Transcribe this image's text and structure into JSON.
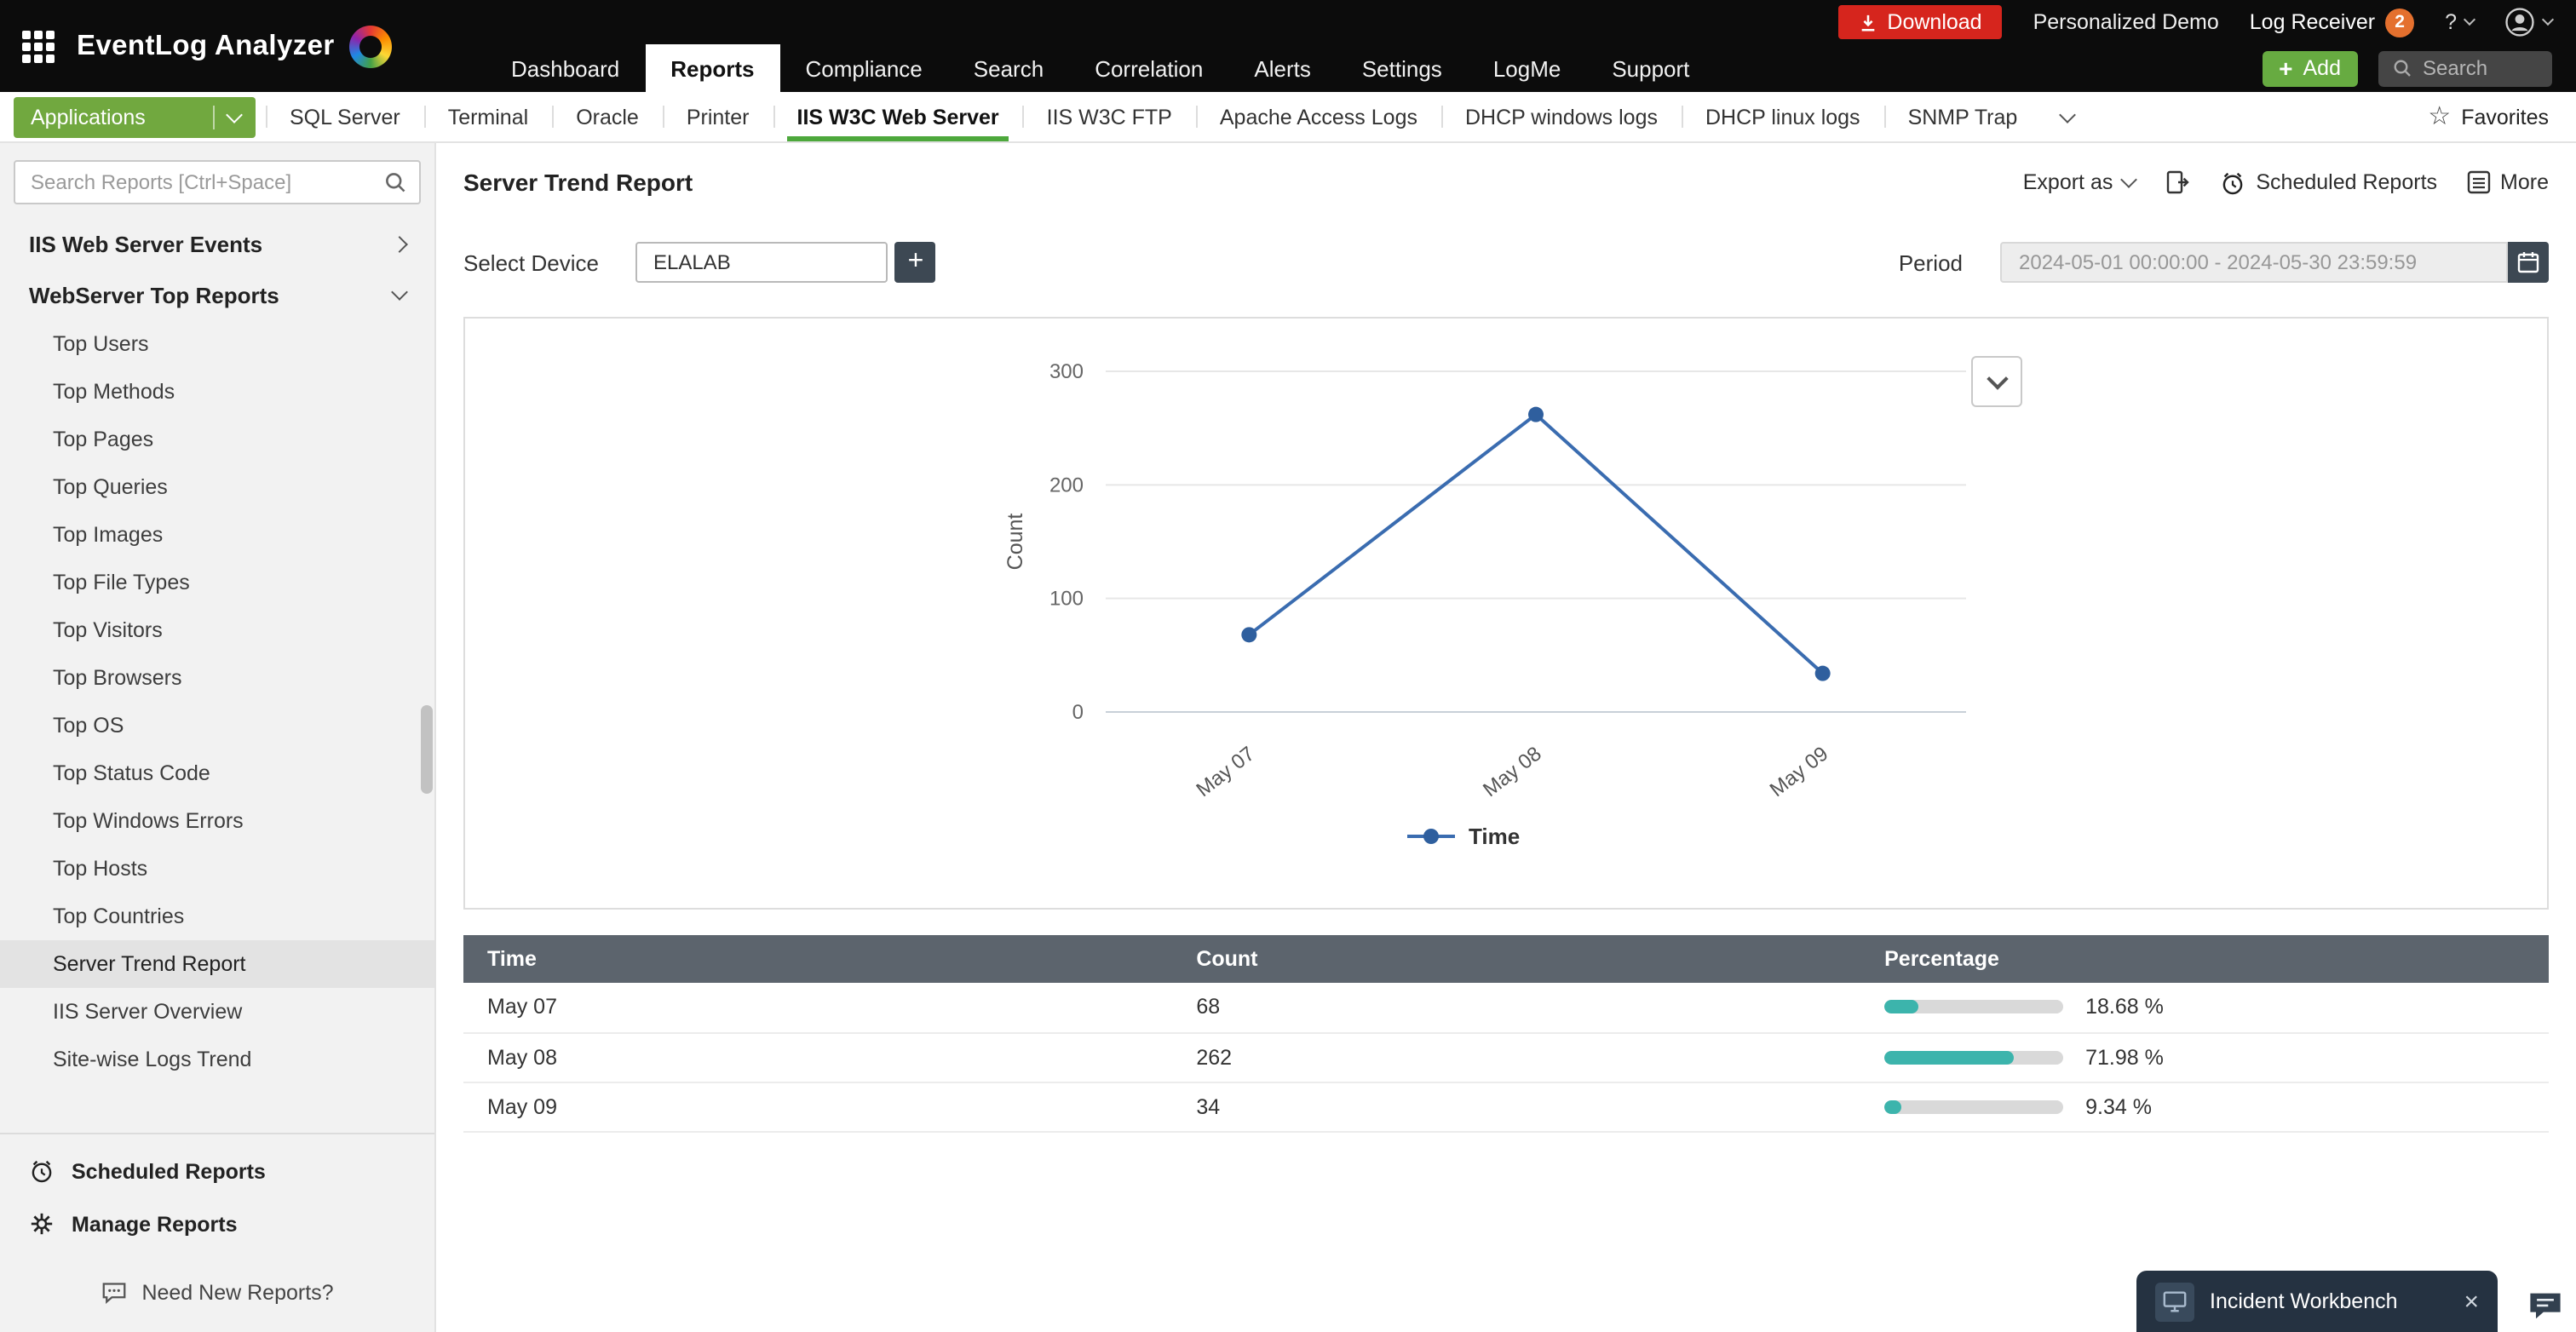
{
  "topbar": {
    "app_title": "EventLog Analyzer",
    "nav": [
      "Dashboard",
      "Reports",
      "Compliance",
      "Search",
      "Correlation",
      "Alerts",
      "Settings",
      "LogMe",
      "Support"
    ],
    "active_nav": "Reports",
    "download_label": "Download",
    "personalized_demo_label": "Personalized Demo",
    "log_receiver_label": "Log Receiver",
    "log_receiver_badge": "2",
    "help_label": "?",
    "add_label": "Add",
    "search_placeholder": "Search"
  },
  "tabbar": {
    "applications_label": "Applications",
    "tabs": [
      "SQL Server",
      "Terminal",
      "Oracle",
      "Printer",
      "IIS W3C Web Server",
      "IIS W3C FTP",
      "Apache Access Logs",
      "DHCP windows logs",
      "DHCP linux logs",
      "SNMP Trap"
    ],
    "active_tab": "IIS W3C Web Server",
    "favorites_label": "Favorites"
  },
  "sidebar": {
    "search_placeholder": "Search Reports [Ctrl+Space]",
    "groups": [
      {
        "label": "IIS Web Server Events",
        "state": "collapsed"
      },
      {
        "label": "WebServer Top Reports",
        "state": "expanded"
      }
    ],
    "items": [
      "Top Users",
      "Top Methods",
      "Top Pages",
      "Top Queries",
      "Top Images",
      "Top File Types",
      "Top Visitors",
      "Top Browsers",
      "Top OS",
      "Top Status Code",
      "Top Windows Errors",
      "Top Hosts",
      "Top Countries",
      "Server Trend Report",
      "IIS Server Overview",
      "Site-wise Logs Trend"
    ],
    "selected_item": "Server Trend Report",
    "footer": [
      "Scheduled Reports",
      "Manage Reports",
      "Need New Reports?"
    ]
  },
  "main": {
    "title": "Server Trend Report",
    "export_label": "Export as",
    "scheduled_reports_label": "Scheduled Reports",
    "more_label": "More",
    "select_device_label": "Select Device",
    "device_value": "ELALAB",
    "period_label": "Period",
    "period_value": "2024-05-01 00:00:00 - 2024-05-30 23:59:59"
  },
  "chart_data": {
    "type": "line",
    "categories": [
      "May 07",
      "May 08",
      "May 09"
    ],
    "series": [
      {
        "name": "Time",
        "values": [
          68,
          262,
          34
        ]
      }
    ],
    "xlabel": "",
    "ylabel": "Count",
    "ylim": [
      0,
      300
    ],
    "yticks": [
      0,
      100,
      200,
      300
    ],
    "grid": true,
    "legend_position": "bottom",
    "line_color": "#3a6cb0",
    "point_color": "#2f5f9e"
  },
  "table": {
    "headers": [
      "Time",
      "Count",
      "Percentage"
    ],
    "rows": [
      {
        "time": "May 07",
        "count": "68",
        "pct": 18.68,
        "percentage_label": "18.68 %"
      },
      {
        "time": "May 08",
        "count": "262",
        "pct": 71.98,
        "percentage_label": "71.98 %"
      },
      {
        "time": "May 09",
        "count": "34",
        "pct": 9.34,
        "percentage_label": "9.34 %"
      }
    ]
  },
  "incident": {
    "title": "Incident Workbench"
  },
  "colors": {
    "accent_green": "#67ab41",
    "tab_underline_green": "#4da83c",
    "download_red": "#d6251d",
    "badge_orange": "#e4702e",
    "table_header_gray": "#5c646d",
    "bar_teal": "#3cb4ac",
    "line_blue": "#3a6cb0"
  }
}
